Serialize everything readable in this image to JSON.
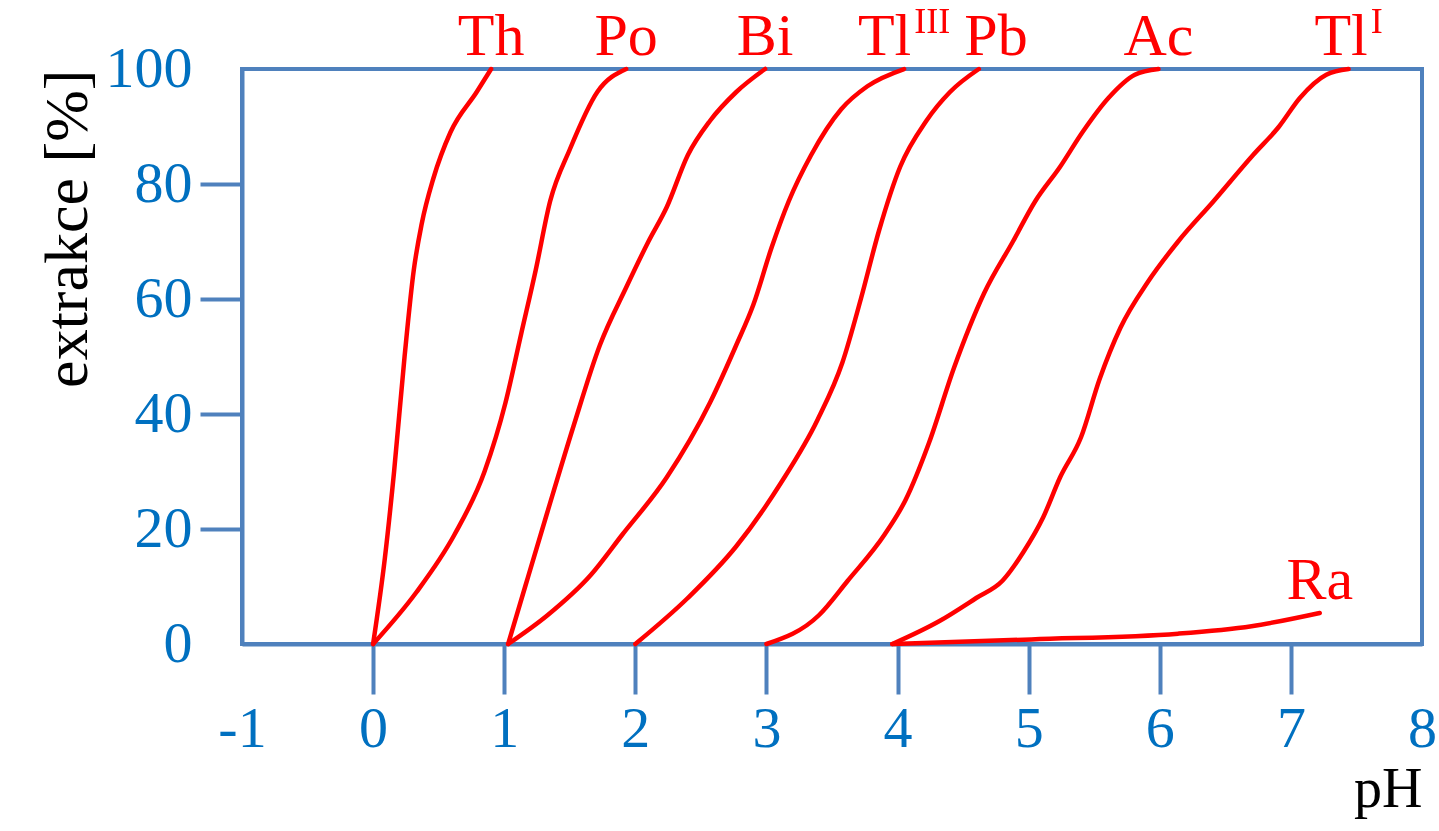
{
  "chart_data": {
    "type": "line",
    "xlabel": "pH",
    "ylabel": "extrakce [%]",
    "xlim": [
      -1,
      8
    ],
    "xticks": [
      -1,
      0,
      1,
      2,
      3,
      4,
      5,
      6,
      7,
      8
    ],
    "ylim": [
      0,
      100
    ],
    "yticks": [
      0,
      20,
      40,
      60,
      80,
      100
    ],
    "marker": "none",
    "line_style": "solid",
    "series": [
      {
        "name": "Th",
        "color": "#ff0000",
        "x": [
          0,
          0.09,
          0.16,
          0.24,
          0.31,
          0.37,
          0.46,
          0.59,
          0.79,
          0.9
        ],
        "values": [
          0,
          15,
          30,
          50,
          65,
          73,
          81,
          89,
          96,
          100
        ]
      },
      {
        "name": "Po",
        "color": "#ff0000",
        "x": [
          0,
          0.33,
          0.62,
          0.85,
          1.01,
          1.13,
          1.24,
          1.35,
          1.5,
          1.71,
          1.93
        ],
        "values": [
          0,
          9,
          19,
          30,
          42,
          54,
          65,
          77,
          86,
          96,
          100
        ]
      },
      {
        "name": "Bi",
        "color": "#ff0000",
        "x": [
          1.03,
          1.16,
          1.33,
          1.53,
          1.73,
          1.93,
          2.1,
          2.24,
          2.4,
          2.57,
          2.77,
          2.99
        ],
        "values": [
          0,
          10,
          23,
          38,
          52,
          62,
          70,
          76,
          85,
          91,
          96,
          100
        ]
      },
      {
        "name": "Tl$^{III}$",
        "color": "#ff0000",
        "x": [
          1.03,
          1.33,
          1.66,
          1.9,
          2.24,
          2.57,
          2.77,
          2.9,
          3.04,
          3.17,
          3.34,
          3.57,
          3.77,
          4.05
        ],
        "values": [
          0,
          5,
          12,
          19,
          29,
          42,
          52,
          59,
          69,
          77,
          85,
          93,
          97,
          100
        ]
      },
      {
        "name": "Pb",
        "color": "#ff0000",
        "x": [
          2.0,
          2.4,
          2.77,
          3.11,
          3.39,
          3.58,
          3.72,
          3.86,
          4.02,
          4.22,
          4.4,
          4.62
        ],
        "values": [
          0,
          8,
          17,
          28,
          39,
          49,
          60,
          72,
          83,
          91,
          96,
          100
        ]
      },
      {
        "name": "Ac",
        "color": "#ff0000",
        "x": [
          3.0,
          3.4,
          3.62,
          3.9,
          4.06,
          4.24,
          4.43,
          4.66,
          4.88,
          5.05,
          5.24,
          5.41,
          5.61,
          5.81,
          5.99
        ],
        "values": [
          0,
          5,
          11,
          19,
          25,
          35,
          48,
          61,
          70,
          77,
          83,
          89,
          95,
          99,
          100
        ]
      },
      {
        "name": "Tl$^{I}$",
        "color": "#ff0000",
        "x": [
          3.96,
          4.32,
          4.6,
          4.8,
          4.96,
          5.11,
          5.24,
          5.4,
          5.54,
          5.7,
          5.91,
          6.14,
          6.41,
          6.71,
          6.91,
          7.07,
          7.27,
          7.44
        ],
        "values": [
          0,
          4,
          8,
          11,
          16,
          22,
          29,
          36,
          46,
          55,
          63,
          70,
          77,
          85,
          90,
          95,
          99,
          100
        ]
      },
      {
        "name": "Ra",
        "color": "#ff0000",
        "x": [
          3.96,
          5.02,
          6.14,
          6.7,
          7.22
        ],
        "values": [
          0,
          0.8,
          1.8,
          3.1,
          5.4
        ]
      }
    ]
  }
}
